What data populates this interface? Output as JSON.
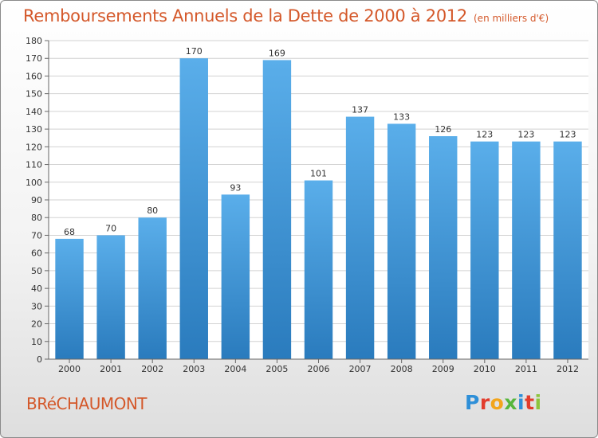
{
  "header": {
    "title": "Remboursements Annuels de la Dette de 2000 à 2012",
    "unit": "(en milliers d'€)"
  },
  "footer": {
    "town": "BRéCHAUMONT",
    "logo_letters": [
      "P",
      "r",
      "o",
      "x",
      "i",
      "t",
      "i"
    ],
    "logo_colors": [
      "#2e8fd8",
      "#e23c2c",
      "#f2a51c",
      "#56b63c",
      "#2e8fd8",
      "#e23c2c",
      "#8cc43c"
    ]
  },
  "colors": {
    "bar_top": "#5aaeea",
    "bar_bottom": "#2a7bbd",
    "grid": "#d2d2d2",
    "title": "#d4582a"
  },
  "chart_data": {
    "type": "bar",
    "categories": [
      "2000",
      "2001",
      "2002",
      "2003",
      "2004",
      "2005",
      "2006",
      "2007",
      "2008",
      "2009",
      "2010",
      "2011",
      "2012"
    ],
    "values": [
      68,
      70,
      80,
      170,
      93,
      169,
      101,
      137,
      133,
      126,
      123,
      123,
      123
    ],
    "ylim": [
      0,
      180
    ],
    "ytick_step": 10,
    "grid": true
  }
}
